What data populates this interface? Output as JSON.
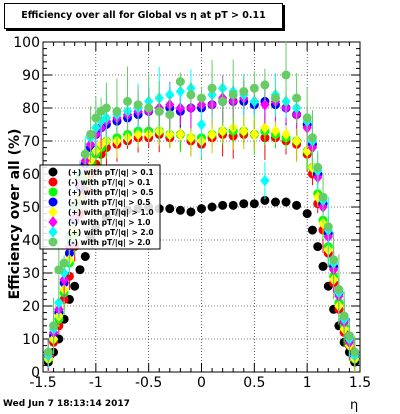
{
  "title": "Efficiency over all for Global vs   η at pT > 0.11",
  "footer": "Wed Jun  7 18:13:14 2017",
  "chart_data": {
    "type": "scatter",
    "title": "Efficiency over all for Global vs   η at pT > 0.11",
    "xlabel": "η",
    "ylabel": "Efficiency over all (%)",
    "xlim": [
      -1.5,
      1.5
    ],
    "ylim": [
      0,
      100
    ],
    "x_ticks": [
      "-1.5",
      "-1",
      "-0.5",
      "0",
      "0.5",
      "1",
      "1.5"
    ],
    "y_ticks": [
      "0",
      "10",
      "20",
      "30",
      "40",
      "50",
      "60",
      "70",
      "80",
      "90",
      "100"
    ],
    "grid": true,
    "legend_position": "left-middle",
    "series": [
      {
        "name": "(+) with pT/|q| > 0.1",
        "color": "#000000",
        "marker": "circle",
        "x": [
          -1.45,
          -1.4,
          -1.35,
          -1.3,
          -1.25,
          -1.2,
          -1.15,
          -1.1,
          -1.05,
          -1.0,
          -0.9,
          -0.8,
          -0.7,
          -0.6,
          -0.5,
          -0.4,
          -0.3,
          -0.2,
          -0.1,
          0.0,
          0.1,
          0.2,
          0.3,
          0.4,
          0.5,
          0.6,
          0.7,
          0.8,
          0.9,
          1.0,
          1.05,
          1.1,
          1.15,
          1.2,
          1.25,
          1.3,
          1.35,
          1.4,
          1.45
        ],
        "y": [
          3,
          6,
          10,
          16,
          22,
          26,
          31,
          35,
          41,
          44,
          47,
          48.5,
          49,
          49.5,
          50,
          49.5,
          49.5,
          49,
          48.5,
          49.5,
          50,
          50.5,
          50.5,
          51,
          51,
          52,
          51.5,
          51.5,
          50.5,
          48,
          43,
          38,
          32,
          26,
          19,
          14,
          9,
          6,
          3
        ]
      },
      {
        "name": "(-) with pT/|q| > 0.1",
        "color": "#ff0000",
        "marker": "circle",
        "x": [
          -1.45,
          -1.4,
          -1.35,
          -1.3,
          -1.25,
          -1.2,
          -1.15,
          -1.1,
          -1.05,
          -1.0,
          -0.95,
          -0.9,
          -0.8,
          -0.7,
          -0.6,
          -0.5,
          -0.4,
          -0.3,
          -0.2,
          -0.1,
          0.0,
          0.1,
          0.2,
          0.3,
          0.4,
          0.5,
          0.6,
          0.7,
          0.8,
          0.9,
          1.0,
          1.05,
          1.1,
          1.15,
          1.2,
          1.25,
          1.3,
          1.35,
          1.4,
          1.45
        ],
        "y": [
          4,
          9,
          14,
          22,
          29,
          38,
          48,
          55,
          60,
          63,
          66,
          68,
          69,
          70,
          71,
          71,
          72,
          71,
          72,
          70,
          69,
          71,
          72,
          71.5,
          72,
          72,
          71,
          71,
          70,
          69,
          66,
          60,
          51,
          43,
          36,
          27,
          19,
          12,
          8,
          4
        ]
      },
      {
        "name": "(+) with pT/|q| > 0.5",
        "color": "#00ff00",
        "marker": "circle",
        "x": [
          -1.45,
          -1.4,
          -1.35,
          -1.3,
          -1.25,
          -1.2,
          -1.15,
          -1.1,
          -1.05,
          -1.0,
          -0.95,
          -0.9,
          -0.8,
          -0.7,
          -0.6,
          -0.5,
          -0.4,
          -0.3,
          -0.2,
          -0.1,
          0.0,
          0.1,
          0.2,
          0.3,
          0.4,
          0.5,
          0.6,
          0.7,
          0.8,
          0.9,
          1.0,
          1.05,
          1.1,
          1.15,
          1.2,
          1.25,
          1.3,
          1.35,
          1.4,
          1.45
        ],
        "y": [
          4,
          10,
          16,
          24,
          33,
          42,
          52,
          58,
          63,
          66,
          68,
          70,
          71,
          72,
          73,
          73,
          73,
          72,
          72,
          71,
          71,
          72,
          73,
          73,
          73,
          72,
          73,
          72,
          71,
          70,
          67,
          62,
          54,
          46,
          38,
          29,
          21,
          14,
          9,
          4
        ]
      },
      {
        "name": "(-) with pT/|q| > 0.5",
        "color": "#0000ff",
        "marker": "circle",
        "x": [
          -1.45,
          -1.4,
          -1.35,
          -1.3,
          -1.25,
          -1.2,
          -1.15,
          -1.1,
          -1.05,
          -1.0,
          -0.95,
          -0.9,
          -0.8,
          -0.7,
          -0.6,
          -0.5,
          -0.4,
          -0.3,
          -0.2,
          -0.1,
          0.0,
          0.1,
          0.2,
          0.3,
          0.4,
          0.5,
          0.6,
          0.7,
          0.8,
          0.9,
          1.0,
          1.05,
          1.1,
          1.15,
          1.2,
          1.25,
          1.3,
          1.35,
          1.4,
          1.45
        ],
        "y": [
          5,
          11,
          18,
          27,
          36,
          46,
          56,
          63,
          68,
          72,
          74,
          75,
          76,
          77,
          78,
          79,
          79,
          80,
          79,
          80,
          80,
          81,
          82,
          82,
          82,
          81,
          82,
          81,
          80,
          78,
          75,
          69,
          60,
          51,
          42,
          32,
          24,
          16,
          10,
          5
        ]
      },
      {
        "name": "(+) with pT/|q| > 1.0",
        "color": "#ffff00",
        "marker": "diamond",
        "x": [
          -1.45,
          -1.4,
          -1.35,
          -1.3,
          -1.25,
          -1.2,
          -1.15,
          -1.1,
          -1.05,
          -1.0,
          -0.95,
          -0.9,
          -0.8,
          -0.7,
          -0.6,
          -0.5,
          -0.4,
          -0.3,
          -0.2,
          -0.1,
          0.0,
          0.1,
          0.2,
          0.3,
          0.4,
          0.5,
          0.6,
          0.7,
          0.8,
          0.9,
          1.0,
          1.05,
          1.1,
          1.15,
          1.2,
          1.25,
          1.3,
          1.35,
          1.4,
          1.45
        ],
        "y": [
          4,
          10,
          17,
          25,
          34,
          43,
          53,
          60,
          64,
          67,
          69,
          70,
          70,
          71,
          72,
          72,
          73,
          72,
          72,
          71,
          70,
          72,
          73,
          74,
          73,
          72,
          74,
          73,
          72,
          70,
          67,
          62,
          53,
          45,
          37,
          28,
          20,
          13,
          8,
          4
        ]
      },
      {
        "name": "(-) with pT/|q| > 1.0",
        "color": "#ff00ff",
        "marker": "diamond",
        "x": [
          -1.45,
          -1.4,
          -1.35,
          -1.3,
          -1.25,
          -1.2,
          -1.15,
          -1.1,
          -1.05,
          -1.0,
          -0.95,
          -0.9,
          -0.8,
          -0.7,
          -0.6,
          -0.5,
          -0.4,
          -0.3,
          -0.2,
          -0.1,
          0.0,
          0.1,
          0.2,
          0.3,
          0.4,
          0.5,
          0.6,
          0.7,
          0.8,
          0.9,
          1.0,
          1.05,
          1.1,
          1.15,
          1.2,
          1.25,
          1.3,
          1.35,
          1.4,
          1.45
        ],
        "y": [
          5,
          12,
          19,
          28,
          38,
          47,
          57,
          64,
          69,
          72,
          74,
          76,
          77,
          78,
          79,
          79,
          80,
          81,
          80,
          80,
          81,
          81,
          83,
          82,
          83,
          82,
          81,
          82,
          80,
          78,
          74,
          68,
          59,
          50,
          41,
          31,
          23,
          15,
          9,
          5
        ]
      },
      {
        "name": "(+) with pT/|q| > 2.0",
        "color": "#00ffff",
        "marker": "diamond",
        "x": [
          -1.45,
          -1.4,
          -1.35,
          -1.3,
          -1.25,
          -1.2,
          -1.15,
          -1.1,
          -1.05,
          -1.0,
          -0.95,
          -0.9,
          -0.8,
          -0.7,
          -0.6,
          -0.5,
          -0.4,
          -0.3,
          -0.2,
          -0.1,
          0.0,
          0.1,
          0.2,
          0.3,
          0.4,
          0.5,
          0.6,
          0.7,
          0.8,
          0.9,
          1.0,
          1.05,
          1.1,
          1.15,
          1.2,
          1.25,
          1.3,
          1.35,
          1.4,
          1.45
        ],
        "y": [
          5,
          13,
          21,
          30,
          40,
          50,
          60,
          66,
          71,
          74,
          76,
          77,
          78,
          79,
          80,
          82,
          83,
          84,
          85,
          86,
          75,
          84,
          86,
          85,
          84,
          82,
          58,
          84,
          82,
          80,
          76,
          70,
          61,
          52,
          43,
          33,
          24,
          16,
          10,
          5
        ]
      },
      {
        "name": "(-) with pT/|q| > 2.0",
        "color": "#66cc66",
        "marker": "circle",
        "x": [
          -1.45,
          -1.4,
          -1.35,
          -1.3,
          -1.25,
          -1.2,
          -1.15,
          -1.1,
          -1.05,
          -1.0,
          -0.95,
          -0.9,
          -0.8,
          -0.7,
          -0.6,
          -0.5,
          -0.4,
          -0.3,
          -0.2,
          -0.1,
          0.0,
          0.1,
          0.2,
          0.3,
          0.4,
          0.5,
          0.6,
          0.7,
          0.8,
          0.9,
          1.0,
          1.05,
          1.1,
          1.15,
          1.2,
          1.25,
          1.3,
          1.35,
          1.4,
          1.45
        ],
        "y": [
          6,
          14,
          31,
          33,
          41,
          50,
          59,
          66,
          72,
          77,
          79,
          80,
          79,
          82,
          81,
          80,
          79,
          78,
          88,
          84,
          83,
          86,
          82,
          84,
          85,
          86,
          87,
          83,
          90,
          83,
          77,
          71,
          62,
          53,
          44,
          34,
          25,
          17,
          11,
          6
        ]
      }
    ]
  }
}
